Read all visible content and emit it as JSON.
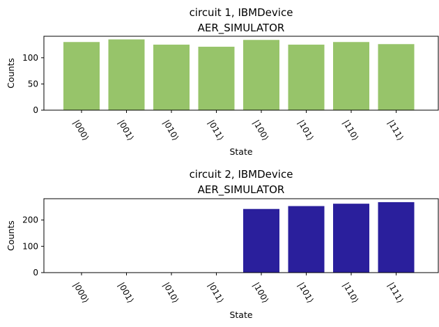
{
  "chart_data": [
    {
      "type": "bar",
      "title_line1": "circuit 1, IBMDevice",
      "title_line2": "AER_SIMULATOR",
      "xlabel": "State",
      "ylabel": "Counts",
      "categories": [
        "|000⟩",
        "|001⟩",
        "|010⟩",
        "|011⟩",
        "|100⟩",
        "|101⟩",
        "|110⟩",
        "|111⟩"
      ],
      "values": [
        130,
        135,
        125,
        121,
        134,
        125,
        130,
        126
      ],
      "ylim": [
        0,
        141
      ],
      "yticks": [
        0,
        50,
        100
      ],
      "color": "#97c46a",
      "grid": false,
      "legend": "none"
    },
    {
      "type": "bar",
      "title_line1": "circuit 2, IBMDevice",
      "title_line2": "AER_SIMULATOR",
      "xlabel": "State",
      "ylabel": "Counts",
      "categories": [
        "|000⟩",
        "|001⟩",
        "|010⟩",
        "|011⟩",
        "|100⟩",
        "|101⟩",
        "|110⟩",
        "|111⟩"
      ],
      "values": [
        0,
        0,
        0,
        0,
        242,
        253,
        262,
        268
      ],
      "ylim": [
        0,
        281
      ],
      "yticks": [
        0,
        100,
        200
      ],
      "color": "#2a1f9c",
      "grid": false,
      "legend": "none"
    }
  ]
}
